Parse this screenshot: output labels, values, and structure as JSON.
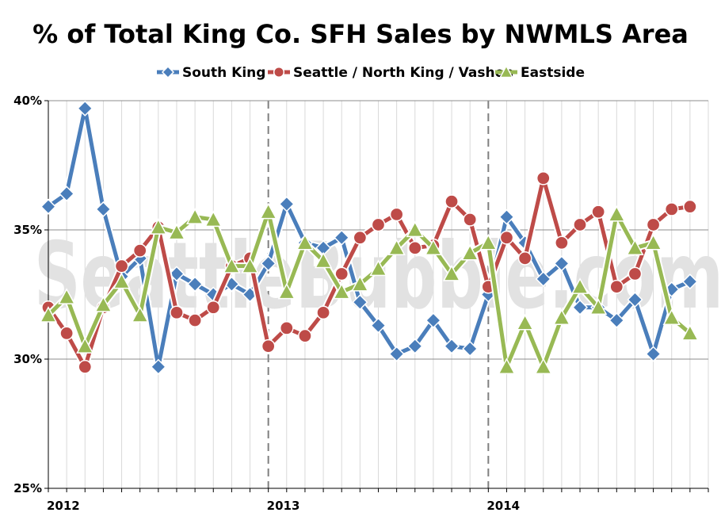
{
  "chart_data": {
    "type": "line",
    "title": "% of Total King Co. SFH Sales by NWMLS Area",
    "watermark": "SeattleBubble.com",
    "xlabel": "",
    "ylabel": "",
    "ylim": [
      25,
      40
    ],
    "y_ticks": [
      25,
      30,
      35,
      40
    ],
    "y_tick_labels": [
      "25%",
      "30%",
      "35%",
      "40%"
    ],
    "x_range_months": [
      0,
      36
    ],
    "x_ticks": [
      {
        "month": 0,
        "label": "2012"
      },
      {
        "month": 12,
        "label": "2013"
      },
      {
        "month": 24,
        "label": "2014"
      }
    ],
    "legend_position": "top",
    "grid": true,
    "series": [
      {
        "name": "South King",
        "color": "#4a7ebb",
        "marker": "diamond",
        "values": [
          35.9,
          36.4,
          39.7,
          35.8,
          33.2,
          33.9,
          29.7,
          33.3,
          32.9,
          32.5,
          32.9,
          32.5,
          33.7,
          36.0,
          34.5,
          34.3,
          34.7,
          32.2,
          31.3,
          30.2,
          30.5,
          31.5,
          30.5,
          30.4,
          32.5,
          35.5,
          34.5,
          33.1,
          33.7,
          32.0,
          32.0,
          31.5,
          32.3,
          30.2,
          32.7,
          33.0
        ]
      },
      {
        "name": "Seattle / North King / Vashon",
        "color": "#be4b48",
        "marker": "circle",
        "values": [
          32.0,
          31.0,
          29.7,
          32.0,
          33.6,
          34.2,
          35.1,
          31.8,
          31.5,
          32.0,
          33.6,
          33.9,
          30.5,
          31.2,
          30.9,
          31.8,
          33.3,
          34.7,
          35.2,
          35.6,
          34.3,
          34.4,
          36.1,
          35.4,
          32.8,
          34.7,
          33.9,
          37.0,
          34.5,
          35.2,
          35.7,
          32.8,
          33.3,
          35.2,
          35.8,
          35.9
        ]
      },
      {
        "name": "Eastside",
        "color": "#98b954",
        "marker": "triangle",
        "values": [
          31.7,
          32.4,
          30.5,
          32.1,
          33.0,
          31.7,
          35.1,
          34.9,
          35.5,
          35.4,
          33.6,
          33.6,
          35.7,
          32.6,
          34.5,
          33.8,
          32.6,
          32.9,
          33.5,
          34.3,
          35.0,
          34.3,
          33.3,
          34.1,
          34.5,
          29.7,
          31.4,
          29.7,
          31.6,
          32.8,
          32.0,
          35.6,
          34.3,
          34.5,
          31.6,
          31.0
        ]
      }
    ]
  }
}
